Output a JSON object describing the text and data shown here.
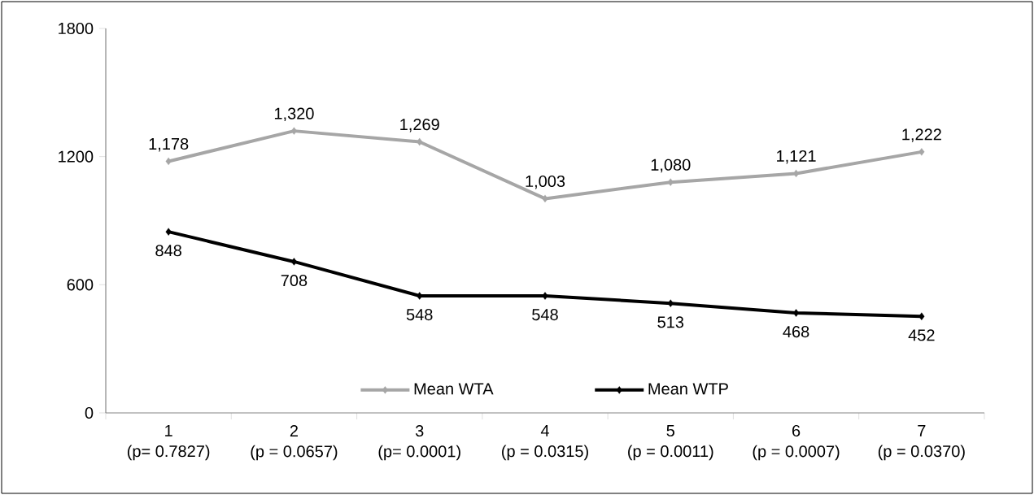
{
  "chart_data": {
    "type": "line",
    "categories": [
      "1\n(p= 0.7827)",
      "2\n(p = 0.0657)",
      "3\n(p= 0.0001)",
      "4\n(p = 0.0315)",
      "5\n(p = 0.0011)",
      "6\n(p = 0.0007)",
      "7\n(p = 0.0370)"
    ],
    "series": [
      {
        "name": "Mean WTA",
        "color": "#a6a6a6",
        "values": [
          1178,
          1320,
          1269,
          1003,
          1080,
          1121,
          1222
        ],
        "value_labels": [
          "1,178",
          "1,320",
          "1,269",
          "1,003",
          "1,080",
          "1,121",
          "1,222"
        ]
      },
      {
        "name": "Mean WTP",
        "color": "#000000",
        "values": [
          848,
          708,
          548,
          548,
          513,
          468,
          452
        ],
        "value_labels": [
          "848",
          "708",
          "548",
          "548",
          "513",
          "468",
          "452"
        ]
      }
    ],
    "ylim": [
      0,
      1800
    ],
    "yticks": [
      0,
      600,
      1200,
      1800
    ],
    "grid": false,
    "legend": "bottom",
    "marker": "diamond",
    "line_style": "solid"
  }
}
